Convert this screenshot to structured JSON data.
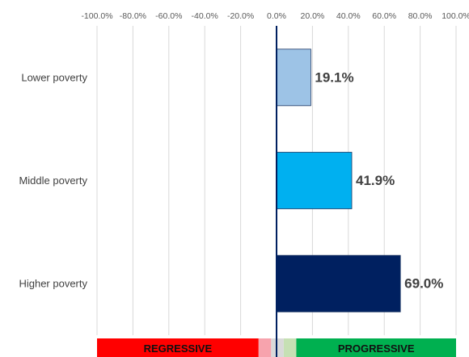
{
  "chart_data": {
    "type": "bar",
    "orientation": "horizontal",
    "categories": [
      "Lower poverty",
      "Middle poverty",
      "Higher poverty"
    ],
    "values": [
      19.1,
      41.9,
      69.0
    ],
    "value_labels": [
      "19.1%",
      "41.9%",
      "69.0%"
    ],
    "colors": [
      "#9dc3e6",
      "#00b0f0",
      "#002060"
    ],
    "xlim": [
      -100,
      100
    ],
    "xticks": [
      {
        "value": -100,
        "label": "-100.0%"
      },
      {
        "value": -80,
        "label": "-80.0%"
      },
      {
        "value": -60,
        "label": "-60.0%"
      },
      {
        "value": -40,
        "label": "-40.0%"
      },
      {
        "value": -20,
        "label": "-20.0%"
      },
      {
        "value": 0,
        "label": "0.0%"
      },
      {
        "value": 20,
        "label": "20.0%"
      },
      {
        "value": 40,
        "label": "40.0%"
      },
      {
        "value": 60,
        "label": "60.0%"
      },
      {
        "value": 80,
        "label": "80.0%"
      },
      {
        "value": 100,
        "label": "100.0%"
      }
    ],
    "grid": true,
    "bands": [
      {
        "from": -100,
        "to": -10,
        "color": "#ff0000",
        "label": "REGRESSIVE"
      },
      {
        "from": -10,
        "to": -3,
        "color": "#f7a3ad"
      },
      {
        "from": -3,
        "to": 4,
        "color": "#d9d9d9"
      },
      {
        "from": 4,
        "to": 11,
        "color": "#c6e0b4"
      },
      {
        "from": 11,
        "to": 100,
        "color": "#00b050",
        "label": "PROGRESSIVE"
      }
    ]
  }
}
